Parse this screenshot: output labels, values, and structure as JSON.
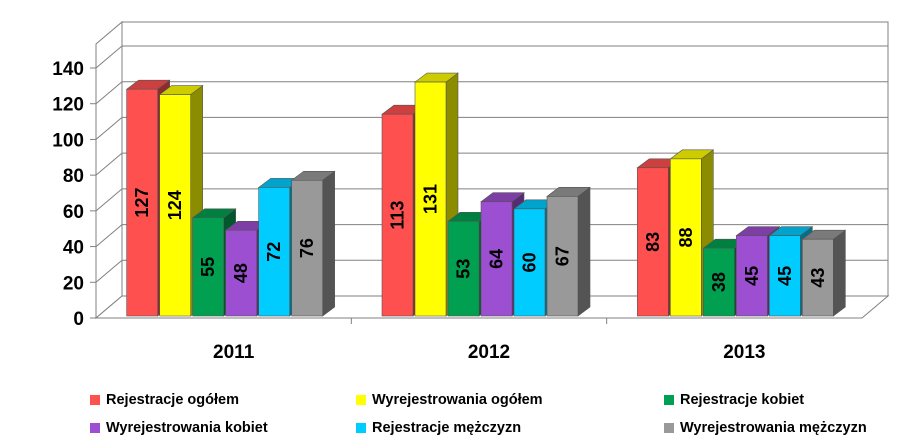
{
  "chart_data": {
    "type": "bar",
    "categories": [
      "2011",
      "2012",
      "2013"
    ],
    "yticks": [
      "0",
      "20",
      "40",
      "60",
      "80",
      "100",
      "120",
      "140"
    ],
    "ylim": [
      0,
      140
    ],
    "grid": true,
    "legend_position": "bottom",
    "series": [
      {
        "name": "Rejestracje ogółem",
        "color": "#FF5050",
        "values": [
          127,
          113,
          83
        ]
      },
      {
        "name": "Wyrejestrowania ogółem",
        "color": "#FFFF00",
        "values": [
          124,
          131,
          88
        ]
      },
      {
        "name": "Rejestracje kobiet",
        "color": "#00A050",
        "values": [
          55,
          53,
          38
        ]
      },
      {
        "name": "Wyrejestrowania kobiet",
        "color": "#9C4FD0",
        "values": [
          48,
          64,
          45
        ]
      },
      {
        "name": "Rejestracje mężczyzn",
        "color": "#00CCFF",
        "values": [
          72,
          60,
          45
        ]
      },
      {
        "name": "Wyrejestrowania mężczyzn",
        "color": "#999999",
        "values": [
          76,
          67,
          43
        ]
      }
    ]
  }
}
